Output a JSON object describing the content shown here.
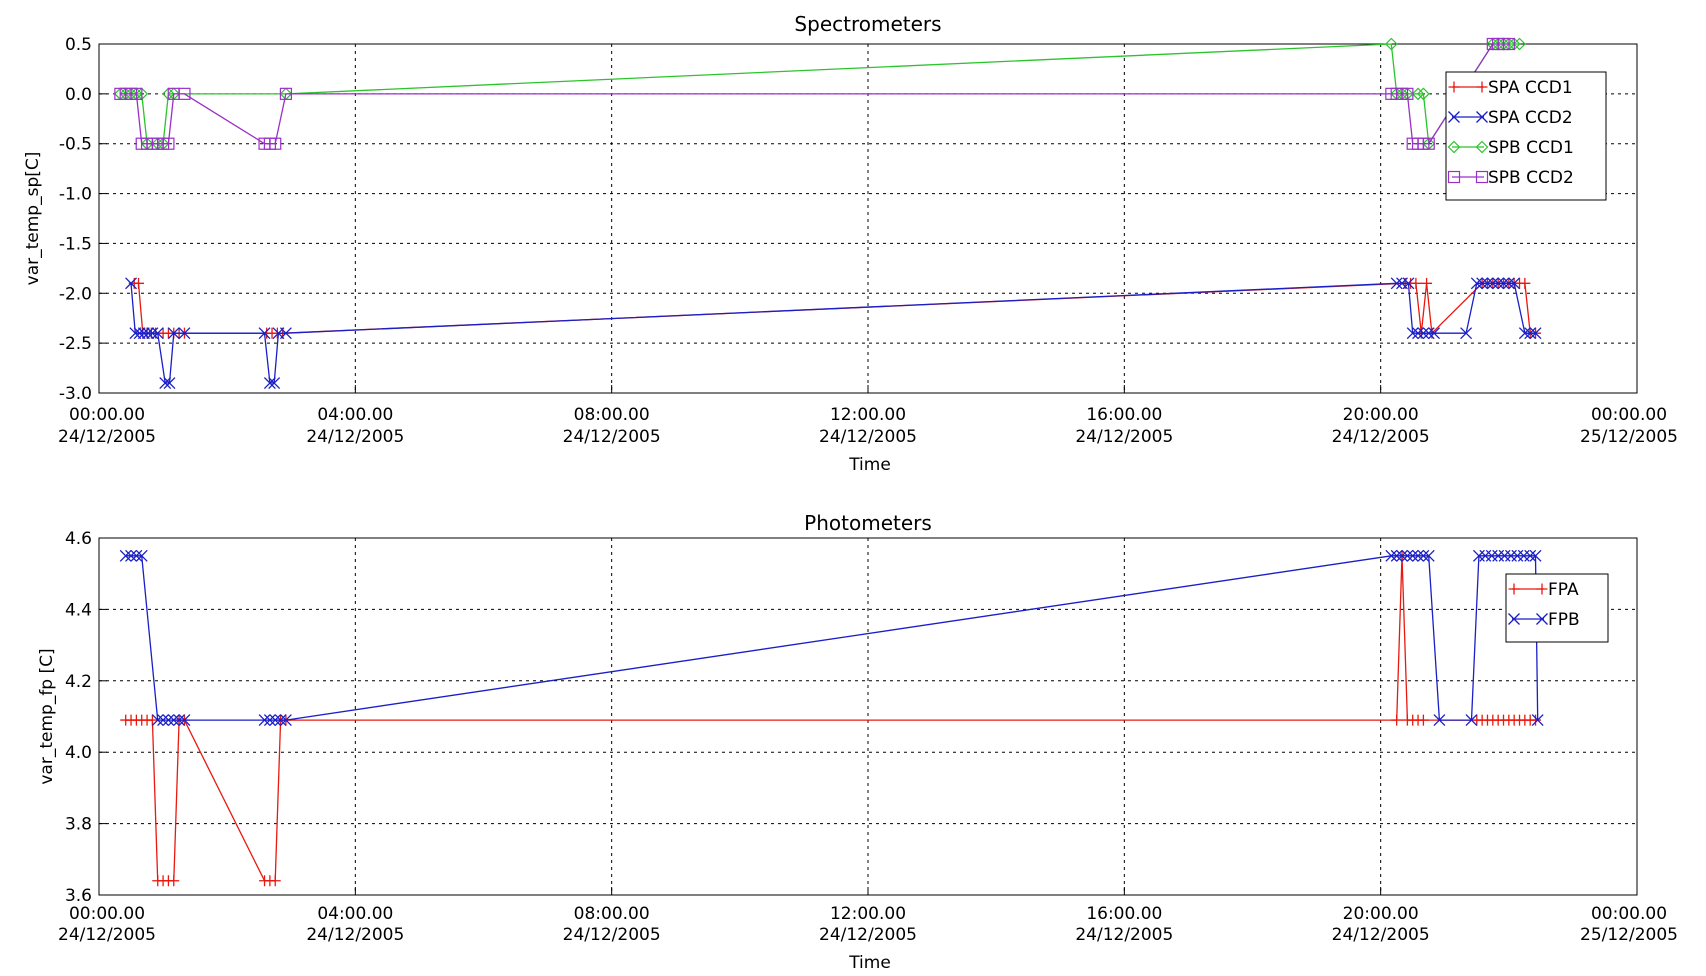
{
  "chart_data": [
    {
      "type": "line",
      "title": "Spectrometers",
      "xlabel": "Time",
      "ylabel": "var_temp_sp[C]",
      "xlim": [
        "2005-12-24 00:00",
        "2005-12-25 00:00"
      ],
      "ylim": [
        -3.0,
        0.5
      ],
      "x_ticks": [
        {
          "time": "00:00.00",
          "date": "24/12/2005"
        },
        {
          "time": "04:00.00",
          "date": "24/12/2005"
        },
        {
          "time": "08:00.00",
          "date": "24/12/2005"
        },
        {
          "time": "12:00.00",
          "date": "24/12/2005"
        },
        {
          "time": "16:00.00",
          "date": "24/12/2005"
        },
        {
          "time": "20:00.00",
          "date": "24/12/2005"
        },
        {
          "time": "00:00.00",
          "date": "25/12/2005"
        }
      ],
      "y_ticks": [
        "0.5",
        "0.0",
        "-0.5",
        "-1.0",
        "-1.5",
        "-2.0",
        "-2.5",
        "-3.0"
      ],
      "grid": true,
      "legend_position": "top-right",
      "series": [
        {
          "name": "SPA CCD1",
          "color": "#e8190f",
          "marker": "plus",
          "x": [
            "2005-12-24 00:33",
            "2005-12-24 00:37",
            "2005-12-24 00:41",
            "2005-12-24 00:45",
            "2005-12-24 00:49",
            "2005-12-24 00:53",
            "2005-12-24 01:00",
            "2005-12-24 01:05",
            "2005-12-24 01:10",
            "2005-12-24 01:15",
            "2005-12-24 01:20",
            "2005-12-24 02:37",
            "2005-12-24 02:42",
            "2005-12-24 02:47",
            "2005-12-24 02:52",
            "2005-12-24 20:23",
            "2005-12-24 20:28",
            "2005-12-24 20:33",
            "2005-12-24 20:38",
            "2005-12-24 20:43",
            "2005-12-24 20:48",
            "2005-12-24 21:35",
            "2005-12-24 21:40",
            "2005-12-24 21:45",
            "2005-12-24 21:50",
            "2005-12-24 21:55",
            "2005-12-24 22:00",
            "2005-12-24 22:05",
            "2005-12-24 22:10",
            "2005-12-24 22:15",
            "2005-12-24 22:20",
            "2005-12-24 22:25"
          ],
          "y": [
            -1.9,
            -1.9,
            -2.4,
            -2.4,
            -2.4,
            -2.4,
            -2.4,
            -2.4,
            -2.4,
            -2.4,
            -2.4,
            -2.4,
            -2.4,
            -2.4,
            -2.4,
            -1.9,
            -1.9,
            -1.9,
            -2.4,
            -1.9,
            -2.4,
            -1.9,
            -1.9,
            -1.9,
            -1.9,
            -1.9,
            -1.9,
            -1.9,
            -1.9,
            -1.9,
            -2.4,
            -2.4
          ]
        },
        {
          "name": "SPA CCD2",
          "color": "#1a1fc7",
          "marker": "x",
          "x": [
            "2005-12-24 00:30",
            "2005-12-24 00:34",
            "2005-12-24 00:38",
            "2005-12-24 00:42",
            "2005-12-24 00:46",
            "2005-12-24 00:50",
            "2005-12-24 00:55",
            "2005-12-24 01:02",
            "2005-12-24 01:06",
            "2005-12-24 01:10",
            "2005-12-24 01:20",
            "2005-12-24 02:35",
            "2005-12-24 02:40",
            "2005-12-24 02:44",
            "2005-12-24 02:48",
            "2005-12-24 02:55",
            "2005-12-24 20:15",
            "2005-12-24 20:20",
            "2005-12-24 20:26",
            "2005-12-24 20:30",
            "2005-12-24 20:35",
            "2005-12-24 20:40",
            "2005-12-24 20:45",
            "2005-12-24 20:50",
            "2005-12-24 21:20",
            "2005-12-24 21:30",
            "2005-12-24 21:35",
            "2005-12-24 21:40",
            "2005-12-24 21:45",
            "2005-12-24 21:50",
            "2005-12-24 21:55",
            "2005-12-24 22:00",
            "2005-12-24 22:05",
            "2005-12-24 22:15",
            "2005-12-24 22:20",
            "2005-12-24 22:25"
          ],
          "y": [
            -1.9,
            -2.4,
            -2.4,
            -2.4,
            -2.4,
            -2.4,
            -2.4,
            -2.9,
            -2.9,
            -2.4,
            -2.4,
            -2.4,
            -2.9,
            -2.9,
            -2.4,
            -2.4,
            -1.9,
            -1.9,
            -1.9,
            -2.4,
            -2.4,
            -2.4,
            -2.4,
            -2.4,
            -2.4,
            -1.9,
            -1.9,
            -1.9,
            -1.9,
            -1.9,
            -1.9,
            -1.9,
            -1.9,
            -2.4,
            -2.4,
            -2.4
          ]
        },
        {
          "name": "SPB CCD1",
          "color": "#2bc42b",
          "marker": "diamond",
          "x": [
            "2005-12-24 00:20",
            "2005-12-24 00:25",
            "2005-12-24 00:30",
            "2005-12-24 00:35",
            "2005-12-24 00:40",
            "2005-12-24 00:45",
            "2005-12-24 00:55",
            "2005-12-24 01:00",
            "2005-12-24 01:05",
            "2005-12-24 01:10",
            "2005-12-24 02:55",
            "2005-12-24 20:10",
            "2005-12-24 20:15",
            "2005-12-24 20:20",
            "2005-12-24 20:25",
            "2005-12-24 20:35",
            "2005-12-24 20:40",
            "2005-12-24 20:45",
            "2005-12-24 21:45",
            "2005-12-24 21:50",
            "2005-12-24 21:55",
            "2005-12-24 22:00",
            "2005-12-24 22:05",
            "2005-12-24 22:10"
          ],
          "y": [
            0.0,
            0.0,
            0.0,
            0.0,
            0.0,
            -0.5,
            -0.5,
            -0.5,
            0.0,
            0.0,
            0.0,
            0.5,
            0.0,
            0.0,
            0.0,
            0.0,
            0.0,
            -0.5,
            0.5,
            0.5,
            0.5,
            0.5,
            0.5,
            0.5
          ]
        },
        {
          "name": "SPB CCD2",
          "color": "#9b30c9",
          "marker": "square",
          "x": [
            "2005-12-24 00:20",
            "2005-12-24 00:25",
            "2005-12-24 00:30",
            "2005-12-24 00:35",
            "2005-12-24 00:40",
            "2005-12-24 00:45",
            "2005-12-24 00:50",
            "2005-12-24 00:55",
            "2005-12-24 01:00",
            "2005-12-24 01:05",
            "2005-12-24 01:10",
            "2005-12-24 01:20",
            "2005-12-24 02:35",
            "2005-12-24 02:40",
            "2005-12-24 02:45",
            "2005-12-24 02:55",
            "2005-12-24 20:10",
            "2005-12-24 20:15",
            "2005-12-24 20:20",
            "2005-12-24 20:25",
            "2005-12-24 20:30",
            "2005-12-24 20:35",
            "2005-12-24 20:40",
            "2005-12-24 20:45",
            "2005-12-24 21:45",
            "2005-12-24 21:50",
            "2005-12-24 21:55",
            "2005-12-24 22:00"
          ],
          "y": [
            0.0,
            0.0,
            0.0,
            0.0,
            -0.5,
            -0.5,
            -0.5,
            -0.5,
            -0.5,
            -0.5,
            0.0,
            0.0,
            -0.5,
            -0.5,
            -0.5,
            0.0,
            0.0,
            0.0,
            0.0,
            0.0,
            -0.5,
            -0.5,
            -0.5,
            -0.5,
            0.5,
            0.5,
            0.5,
            0.5
          ]
        }
      ]
    },
    {
      "type": "line",
      "title": "Photometers",
      "xlabel": "Time",
      "ylabel": "var_temp_fp [C]",
      "xlim": [
        "2005-12-24 00:00",
        "2005-12-25 00:00"
      ],
      "ylim": [
        3.6,
        4.6
      ],
      "x_ticks": [
        {
          "time": "00:00.00",
          "date": "24/12/2005"
        },
        {
          "time": "04:00.00",
          "date": "24/12/2005"
        },
        {
          "time": "08:00.00",
          "date": "24/12/2005"
        },
        {
          "time": "12:00.00",
          "date": "24/12/2005"
        },
        {
          "time": "16:00.00",
          "date": "24/12/2005"
        },
        {
          "time": "20:00.00",
          "date": "24/12/2005"
        },
        {
          "time": "00:00.00",
          "date": "25/12/2005"
        }
      ],
      "y_ticks": [
        "4.6",
        "4.4",
        "4.2",
        "4.0",
        "3.8",
        "3.6"
      ],
      "grid": true,
      "legend_position": "top-right",
      "series": [
        {
          "name": "FPA",
          "color": "#e8190f",
          "marker": "plus",
          "x": [
            "2005-12-24 00:25",
            "2005-12-24 00:30",
            "2005-12-24 00:35",
            "2005-12-24 00:40",
            "2005-12-24 00:45",
            "2005-12-24 00:50",
            "2005-12-24 00:55",
            "2005-12-24 01:00",
            "2005-12-24 01:05",
            "2005-12-24 01:10",
            "2005-12-24 01:15",
            "2005-12-24 01:20",
            "2005-12-24 02:35",
            "2005-12-24 02:40",
            "2005-12-24 02:45",
            "2005-12-24 02:50",
            "2005-12-24 02:55",
            "2005-12-24 20:15",
            "2005-12-24 20:20",
            "2005-12-24 20:25",
            "2005-12-24 20:30",
            "2005-12-24 20:35",
            "2005-12-24 20:40",
            "2005-12-24 21:30",
            "2005-12-24 21:35",
            "2005-12-24 21:40",
            "2005-12-24 21:45",
            "2005-12-24 21:50",
            "2005-12-24 21:55",
            "2005-12-24 22:00",
            "2005-12-24 22:05",
            "2005-12-24 22:10",
            "2005-12-24 22:15",
            "2005-12-24 22:20",
            "2005-12-24 22:25"
          ],
          "y": [
            4.09,
            4.09,
            4.09,
            4.09,
            4.09,
            4.09,
            3.64,
            3.64,
            3.64,
            3.64,
            4.09,
            4.09,
            3.64,
            3.64,
            3.64,
            4.09,
            4.09,
            4.09,
            4.55,
            4.09,
            4.09,
            4.09,
            4.09,
            4.09,
            4.09,
            4.09,
            4.09,
            4.09,
            4.09,
            4.09,
            4.09,
            4.09,
            4.09,
            4.09,
            4.09
          ]
        },
        {
          "name": "FPB",
          "color": "#1a1fc7",
          "marker": "x",
          "x": [
            "2005-12-24 00:25",
            "2005-12-24 00:30",
            "2005-12-24 00:35",
            "2005-12-24 00:40",
            "2005-12-24 00:55",
            "2005-12-24 01:00",
            "2005-12-24 01:05",
            "2005-12-24 01:10",
            "2005-12-24 01:15",
            "2005-12-24 01:20",
            "2005-12-24 02:35",
            "2005-12-24 02:40",
            "2005-12-24 02:45",
            "2005-12-24 02:50",
            "2005-12-24 02:55",
            "2005-12-24 20:10",
            "2005-12-24 20:15",
            "2005-12-24 20:20",
            "2005-12-24 20:25",
            "2005-12-24 20:30",
            "2005-12-24 20:35",
            "2005-12-24 20:40",
            "2005-12-24 20:45",
            "2005-12-24 20:55",
            "2005-12-24 21:25",
            "2005-12-24 21:32",
            "2005-12-24 21:38",
            "2005-12-24 21:44",
            "2005-12-24 21:50",
            "2005-12-24 21:56",
            "2005-12-24 22:02",
            "2005-12-24 22:08",
            "2005-12-24 22:14",
            "2005-12-24 22:20",
            "2005-12-24 22:25",
            "2005-12-24 22:27"
          ],
          "y": [
            4.55,
            4.55,
            4.55,
            4.55,
            4.09,
            4.09,
            4.09,
            4.09,
            4.09,
            4.09,
            4.09,
            4.09,
            4.09,
            4.09,
            4.09,
            4.55,
            4.55,
            4.55,
            4.55,
            4.55,
            4.55,
            4.55,
            4.55,
            4.09,
            4.09,
            4.55,
            4.55,
            4.55,
            4.55,
            4.55,
            4.55,
            4.55,
            4.55,
            4.55,
            4.55,
            4.09
          ]
        }
      ]
    }
  ]
}
